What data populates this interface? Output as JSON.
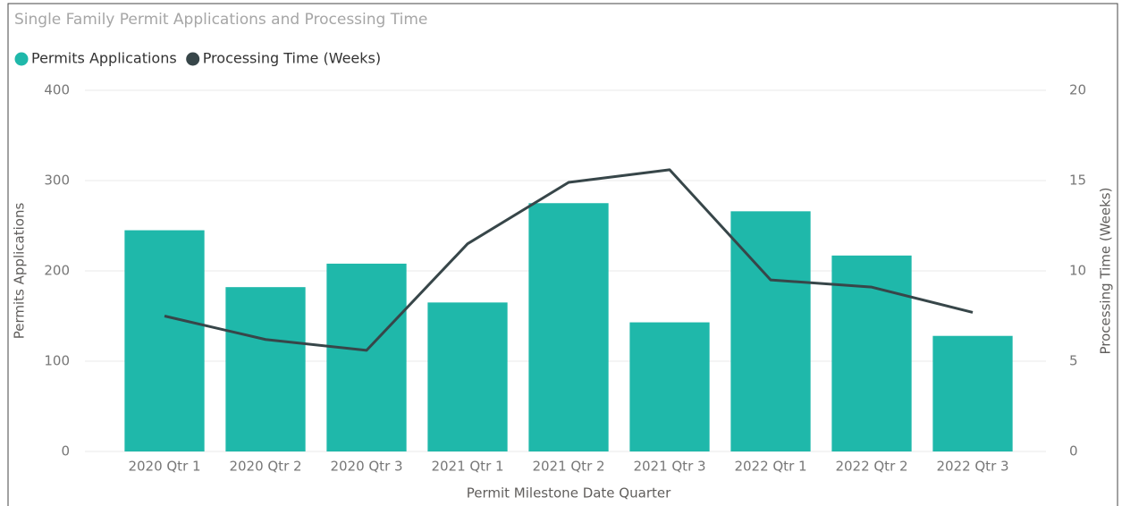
{
  "chart_data": {
    "type": "bar_line",
    "title": "Single Family Permit Applications and Processing Time",
    "xlabel": "Permit Milestone Date Quarter",
    "ylabel": "Permits Applications",
    "y2label": "Processing Time (Weeks)",
    "categories": [
      "2020 Qtr 1",
      "2020 Qtr 2",
      "2020 Qtr 3",
      "2021 Qtr 1",
      "2021 Qtr 2",
      "2021 Qtr 3",
      "2022 Qtr 1",
      "2022 Qtr 2",
      "2022 Qtr 3"
    ],
    "series": [
      {
        "name": "Permits Applications",
        "color": "#1fb8aa",
        "kind": "bar",
        "values": [
          245,
          182,
          208,
          165,
          275,
          143,
          266,
          217,
          128
        ]
      },
      {
        "name": "Processing Time (Weeks)",
        "color": "#374649",
        "kind": "line",
        "axis": "y2",
        "values": [
          7.5,
          6.2,
          5.6,
          11.5,
          14.9,
          15.6,
          9.5,
          9.1,
          7.7
        ]
      }
    ],
    "ylim": [
      0,
      400
    ],
    "yticks": [
      0,
      100,
      200,
      300,
      400
    ],
    "y2lim": [
      0,
      20
    ],
    "y2ticks": [
      0,
      5,
      10,
      15,
      20
    ],
    "grid": true,
    "legend": "top-left"
  }
}
